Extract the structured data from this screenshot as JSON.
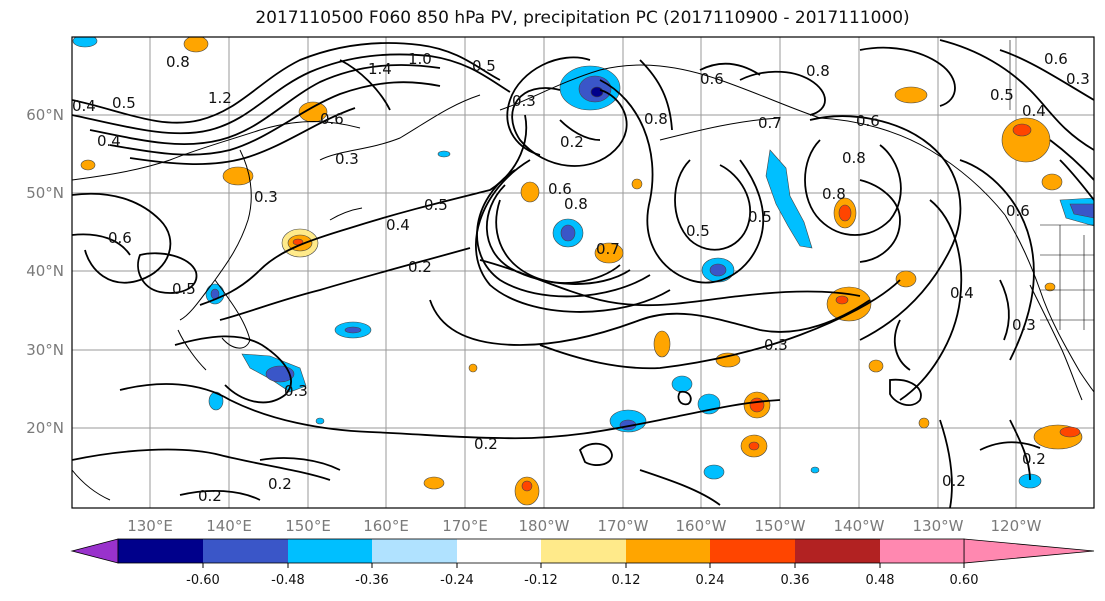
{
  "title": "2017110500 F060 850 hPa PV, precipitation PC (2017110900 - 2017111000)",
  "map": {
    "lon_labels": [
      "130°E",
      "140°E",
      "150°E",
      "160°E",
      "170°E",
      "180°W",
      "170°W",
      "160°W",
      "150°W",
      "140°W",
      "130°W",
      "120°W"
    ],
    "lat_labels": [
      "60°N",
      "50°N",
      "40°N",
      "30°N",
      "20°N"
    ],
    "contour_labels": [
      {
        "text": "0.8"
      },
      {
        "text": "1.4"
      },
      {
        "text": "1.0"
      },
      {
        "text": "0.5"
      },
      {
        "text": "0.4"
      },
      {
        "text": "0.5"
      },
      {
        "text": "1.2"
      },
      {
        "text": "0.6"
      },
      {
        "text": "0.4"
      },
      {
        "text": "0.3"
      },
      {
        "text": "0.3"
      },
      {
        "text": "0.6"
      },
      {
        "text": "0.5"
      },
      {
        "text": "0.4"
      },
      {
        "text": "0.5"
      },
      {
        "text": "0.2"
      },
      {
        "text": "0.3"
      },
      {
        "text": "0.2"
      },
      {
        "text": "0.6"
      },
      {
        "text": "0.8"
      },
      {
        "text": "0.7"
      },
      {
        "text": "0.5"
      },
      {
        "text": "0.5"
      },
      {
        "text": "0.8"
      },
      {
        "text": "0.6"
      },
      {
        "text": "0.8"
      },
      {
        "text": "0.8"
      },
      {
        "text": "0.6"
      },
      {
        "text": "0.8"
      },
      {
        "text": "0.6"
      },
      {
        "text": "0.5"
      },
      {
        "text": "0.4"
      },
      {
        "text": "0.6"
      },
      {
        "text": "0.3"
      },
      {
        "text": "0.4"
      },
      {
        "text": "0.3"
      },
      {
        "text": "0.2"
      },
      {
        "text": "0.2"
      },
      {
        "text": "0.2"
      },
      {
        "text": "0.3"
      },
      {
        "text": "0.7"
      },
      {
        "text": "0.2"
      },
      {
        "text": "0.3"
      },
      {
        "text": "0.2"
      }
    ]
  },
  "colorbar": {
    "colors": [
      "#9932CC",
      "#00008B",
      "#3A56C8",
      "#00BFFF",
      "#B0E2FF",
      "#FFFFFF",
      "#FFEA8A",
      "#FFA500",
      "#FF4500",
      "#B22222",
      "#FF88B0"
    ],
    "tick_labels": [
      "-0.60",
      "-0.48",
      "-0.36",
      "-0.24",
      "-0.12",
      "0.12",
      "0.24",
      "0.36",
      "0.48",
      "0.60"
    ]
  }
}
